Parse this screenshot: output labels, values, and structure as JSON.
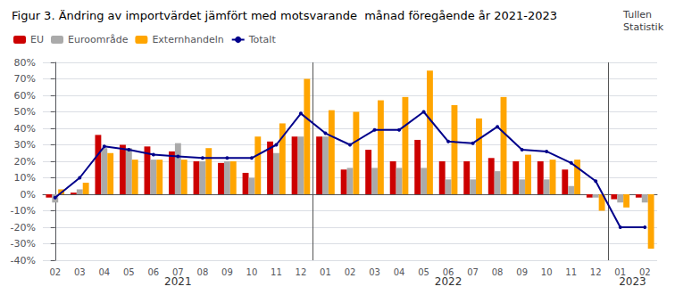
{
  "chart_data": {
    "type": "bar",
    "title": "Figur 3. Ändring av importvärdet jämfört med motsvarande  månad föregående år 2021-2023",
    "watermark": "Tullen\nStatistik",
    "categories": [
      "02",
      "03",
      "04",
      "05",
      "06",
      "07",
      "08",
      "09",
      "10",
      "11",
      "12",
      "01",
      "02",
      "03",
      "04",
      "05",
      "06",
      "07",
      "08",
      "09",
      "10",
      "11",
      "12",
      "01",
      "02"
    ],
    "series": [
      {
        "name": "EU",
        "type": "bar",
        "color": "#cc0000",
        "values": [
          -2,
          1,
          36,
          30,
          29,
          26,
          20,
          19,
          13,
          32,
          35,
          35,
          15,
          27,
          20,
          33,
          20,
          20,
          22,
          20,
          20,
          15,
          -2,
          -3,
          -2
        ]
      },
      {
        "name": "Euroområde",
        "type": "bar",
        "color": "#aaaaaa",
        "values": [
          -5,
          3,
          28,
          28,
          21,
          31,
          20,
          20,
          10,
          25,
          35,
          35,
          16,
          16,
          16,
          16,
          9,
          9,
          14,
          9,
          9,
          5,
          -2,
          -5,
          -5
        ]
      },
      {
        "name": "Externhandeln",
        "type": "bar",
        "color": "#ffa500",
        "values": [
          3,
          7,
          25,
          21,
          21,
          21,
          28,
          20,
          35,
          43,
          70,
          51,
          50,
          57,
          59,
          75,
          54,
          46,
          59,
          24,
          21,
          21,
          -10,
          -8,
          -33
        ]
      },
      {
        "name": "Totalt",
        "type": "line",
        "marker": "circle",
        "color": "#00008b",
        "values": [
          -2,
          10,
          29,
          27,
          24,
          23,
          22,
          22,
          22,
          30,
          49,
          37,
          30,
          39,
          39,
          50,
          32,
          31,
          41,
          27,
          26,
          19,
          8,
          -20,
          -20
        ]
      }
    ],
    "separators": [
      10.5,
      22.5
    ],
    "annotations": [
      {
        "text": "2021",
        "x": 5.0
      },
      {
        "text": "2022",
        "x": 16.0
      },
      {
        "text": "2023",
        "x": 23.5
      }
    ],
    "ylim": [
      -40,
      80
    ],
    "yticks": [
      {
        "value": -40,
        "label": "-40%"
      },
      {
        "value": -30,
        "label": "-30%"
      },
      {
        "value": -20,
        "label": "-20%"
      },
      {
        "value": -10,
        "label": "-10%"
      },
      {
        "value": 0,
        "label": "0%"
      },
      {
        "value": 10,
        "label": "10%"
      },
      {
        "value": 20,
        "label": "20%"
      },
      {
        "value": 30,
        "label": "30%"
      },
      {
        "value": 40,
        "label": "40%"
      },
      {
        "value": 50,
        "label": "50%"
      },
      {
        "value": 60,
        "label": "60%"
      },
      {
        "value": 70,
        "label": "70%"
      },
      {
        "value": 80,
        "label": "80%"
      }
    ],
    "grid": true,
    "legend": "upper left"
  }
}
